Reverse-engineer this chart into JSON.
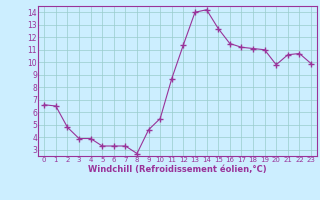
{
  "x": [
    0,
    1,
    2,
    3,
    4,
    5,
    6,
    7,
    8,
    9,
    10,
    11,
    12,
    13,
    14,
    15,
    16,
    17,
    18,
    19,
    20,
    21,
    22,
    23
  ],
  "y": [
    6.6,
    6.5,
    4.8,
    3.9,
    3.9,
    3.3,
    3.3,
    3.3,
    2.7,
    4.6,
    5.5,
    8.7,
    11.4,
    14.0,
    14.2,
    12.7,
    11.5,
    11.2,
    11.1,
    11.0,
    9.8,
    10.6,
    10.7,
    9.9
  ],
  "line_color": "#993399",
  "marker": "+",
  "marker_size": 4,
  "bg_color": "#cceeff",
  "grid_color": "#99cccc",
  "xlabel": "Windchill (Refroidissement éolien,°C)",
  "xlabel_color": "#993399",
  "tick_color": "#993399",
  "spine_color": "#993399",
  "ylim": [
    2.5,
    14.5
  ],
  "xlim": [
    -0.5,
    23.5
  ],
  "yticks": [
    3,
    4,
    5,
    6,
    7,
    8,
    9,
    10,
    11,
    12,
    13,
    14
  ],
  "xticks": [
    0,
    1,
    2,
    3,
    4,
    5,
    6,
    7,
    8,
    9,
    10,
    11,
    12,
    13,
    14,
    15,
    16,
    17,
    18,
    19,
    20,
    21,
    22,
    23
  ]
}
